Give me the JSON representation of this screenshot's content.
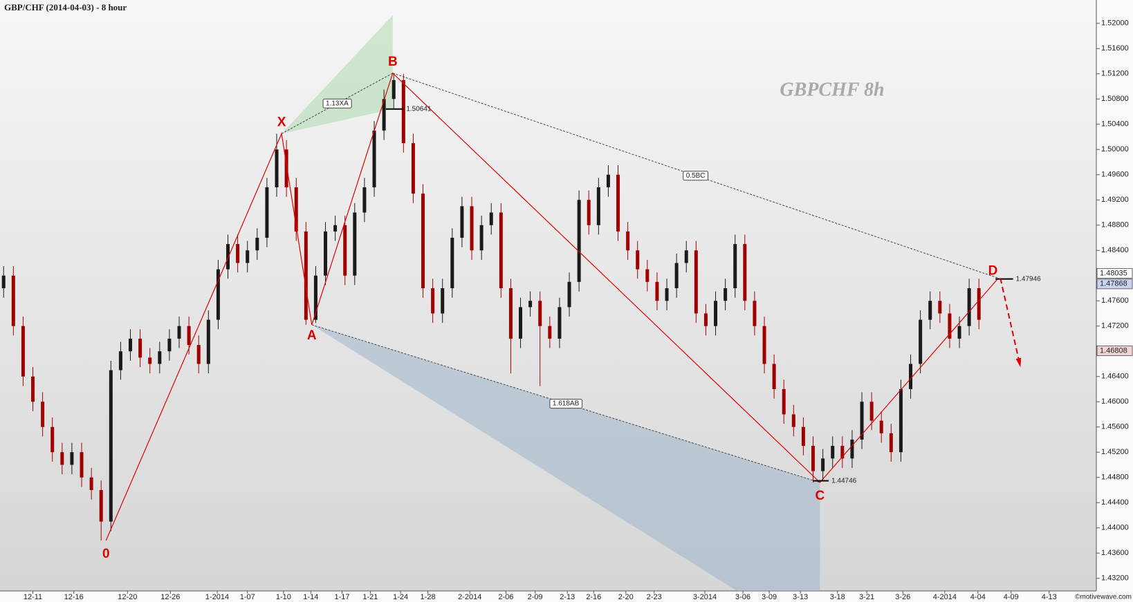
{
  "chart_data": {
    "type": "candlestick",
    "title": "GBP/CHF (2014-04-03) - 8 hour",
    "watermark": "GBPCHF  8h",
    "credit": "©motivewave.com",
    "up_color": "#1a1a1a",
    "down_color": "#a00000",
    "xlim": [
      -0.37,
      112.04
    ],
    "ylim": [
      1.43,
      1.5237
    ],
    "xticks": [
      {
        "value": 3,
        "label": "12-11"
      },
      {
        "value": 7.2,
        "label": "12-16"
      },
      {
        "value": 12.7,
        "label": "12-20"
      },
      {
        "value": 17.1,
        "label": "12-26"
      },
      {
        "value": 21.9,
        "label": "1-2014"
      },
      {
        "value": 25,
        "label": "1-07"
      },
      {
        "value": 28.7,
        "label": "1-10"
      },
      {
        "value": 31.5,
        "label": "1-14"
      },
      {
        "value": 34.7,
        "label": "1-17"
      },
      {
        "value": 37.6,
        "label": "1-21"
      },
      {
        "value": 40.7,
        "label": "1-24"
      },
      {
        "value": 43.5,
        "label": "1-28"
      },
      {
        "value": 47.8,
        "label": "2-2014"
      },
      {
        "value": 51.5,
        "label": "2-06"
      },
      {
        "value": 54.5,
        "label": "2-09"
      },
      {
        "value": 57.8,
        "label": "2-13"
      },
      {
        "value": 60.5,
        "label": "2-16"
      },
      {
        "value": 63.8,
        "label": "2-20"
      },
      {
        "value": 66.7,
        "label": "2-23"
      },
      {
        "value": 71.9,
        "label": "3-2014"
      },
      {
        "value": 75.8,
        "label": "3-06"
      },
      {
        "value": 78.5,
        "label": "3-09"
      },
      {
        "value": 81.7,
        "label": "3-13"
      },
      {
        "value": 85.5,
        "label": "3-18"
      },
      {
        "value": 88.5,
        "label": "3-21"
      },
      {
        "value": 92.2,
        "label": "3-26"
      },
      {
        "value": 96.5,
        "label": "4-2014"
      },
      {
        "value": 99.9,
        "label": "4-04"
      },
      {
        "value": 103.3,
        "label": "4-09"
      },
      {
        "value": 107.2,
        "label": "4-13"
      }
    ],
    "yticks": [
      {
        "value": 1.432,
        "label": "1.43200"
      },
      {
        "value": 1.436,
        "label": "1.43600"
      },
      {
        "value": 1.44,
        "label": "1.44000"
      },
      {
        "value": 1.444,
        "label": "1.44400"
      },
      {
        "value": 1.448,
        "label": "1.44800"
      },
      {
        "value": 1.452,
        "label": "1.45200"
      },
      {
        "value": 1.456,
        "label": "1.45600"
      },
      {
        "value": 1.46,
        "label": "1.46000"
      },
      {
        "value": 1.464,
        "label": "1.46400"
      },
      {
        "value": 1.468,
        "label": "1.46800"
      },
      {
        "value": 1.472,
        "label": "1.47200"
      },
      {
        "value": 1.476,
        "label": "1.47600"
      },
      {
        "value": 1.48,
        "label": "1.48000"
      },
      {
        "value": 1.484,
        "label": "1.48400"
      },
      {
        "value": 1.488,
        "label": "1.48800"
      },
      {
        "value": 1.492,
        "label": "1.49200"
      },
      {
        "value": 1.496,
        "label": "1.49600"
      },
      {
        "value": 1.5,
        "label": "1.50000"
      },
      {
        "value": 1.504,
        "label": "1.50400"
      },
      {
        "value": 1.508,
        "label": "1.50800"
      },
      {
        "value": 1.512,
        "label": "1.51200"
      },
      {
        "value": 1.516,
        "label": "1.51600"
      },
      {
        "value": 1.52,
        "label": "1.52000"
      }
    ],
    "x": [
      0,
      1,
      2,
      3,
      4,
      5,
      6,
      7,
      8,
      9,
      10,
      11,
      12,
      13,
      14,
      15,
      16,
      17,
      18,
      19,
      20,
      21,
      22,
      23,
      24,
      25,
      26,
      27,
      28,
      29,
      30,
      31,
      32,
      33,
      34,
      35,
      36,
      37,
      38,
      39,
      40,
      41,
      42,
      43,
      44,
      45,
      46,
      47,
      48,
      49,
      50,
      51,
      52,
      53,
      54,
      55,
      56,
      57,
      58,
      59,
      60,
      61,
      62,
      63,
      64,
      65,
      66,
      67,
      68,
      69,
      70,
      71,
      72,
      73,
      74,
      75,
      76,
      77,
      78,
      79,
      80,
      81,
      82,
      83,
      84,
      85,
      86,
      87,
      88,
      89,
      90,
      91,
      92,
      93,
      94,
      95,
      96,
      97,
      98,
      99,
      100
    ],
    "open": [
      1.478,
      1.48,
      1.472,
      1.464,
      1.46,
      1.456,
      1.452,
      1.45,
      1.452,
      1.448,
      1.446,
      1.441,
      1.465,
      1.468,
      1.47,
      1.467,
      1.466,
      1.468,
      1.47,
      1.472,
      1.469,
      1.466,
      1.473,
      1.481,
      1.485,
      1.482,
      1.484,
      1.486,
      1.494,
      1.5,
      1.494,
      1.487,
      1.473,
      1.48,
      1.487,
      1.488,
      1.48,
      1.49,
      1.494,
      1.503,
      1.508,
      1.511,
      1.501,
      1.493,
      1.478,
      1.474,
      1.478,
      1.486,
      1.491,
      1.484,
      1.488,
      1.49,
      1.478,
      1.47,
      1.475,
      1.476,
      1.472,
      1.47,
      1.475,
      1.479,
      1.492,
      1.488,
      1.494,
      1.496,
      1.487,
      1.484,
      1.481,
      1.479,
      1.476,
      1.478,
      1.482,
      1.484,
      1.474,
      1.472,
      1.476,
      1.478,
      1.485,
      1.476,
      1.472,
      1.466,
      1.462,
      1.458,
      1.456,
      1.453,
      1.449,
      1.451,
      1.453,
      1.451,
      1.454,
      1.46,
      1.457,
      1.455,
      1.452,
      1.462,
      1.466,
      1.473,
      1.476,
      1.474,
      1.47,
      1.472,
      1.478
    ],
    "high": [
      1.4815,
      1.4815,
      1.4735,
      1.4655,
      1.4615,
      1.4575,
      1.4535,
      1.4535,
      1.4535,
      1.4495,
      1.4475,
      1.4665,
      1.4695,
      1.4715,
      1.4715,
      1.4685,
      1.4695,
      1.4715,
      1.4735,
      1.4735,
      1.4705,
      1.4745,
      1.4825,
      1.4865,
      1.4865,
      1.4855,
      1.4875,
      1.4955,
      1.5025,
      1.5015,
      1.4955,
      1.4885,
      1.4815,
      1.4885,
      1.4895,
      1.4895,
      1.4915,
      1.4955,
      1.5045,
      1.5095,
      1.5121,
      1.512,
      1.5025,
      1.4945,
      1.4795,
      1.4795,
      1.4875,
      1.4925,
      1.4925,
      1.4895,
      1.4915,
      1.4915,
      1.4795,
      1.4765,
      1.4775,
      1.4775,
      1.4735,
      1.4765,
      1.4805,
      1.4935,
      1.4935,
      1.4955,
      1.4975,
      1.4975,
      1.4885,
      1.4855,
      1.4825,
      1.4805,
      1.4795,
      1.4835,
      1.4855,
      1.4855,
      1.4755,
      1.4775,
      1.4795,
      1.4865,
      1.4865,
      1.4775,
      1.4735,
      1.4675,
      1.4635,
      1.4595,
      1.4575,
      1.4545,
      1.4525,
      1.4545,
      1.4545,
      1.4555,
      1.4615,
      1.4615,
      1.4585,
      1.4565,
      1.4635,
      1.4675,
      1.4745,
      1.4775,
      1.4775,
      1.4755,
      1.4735,
      1.4795,
      1.4795
    ],
    "low": [
      1.4765,
      1.4705,
      1.4625,
      1.4585,
      1.4545,
      1.4505,
      1.4485,
      1.4485,
      1.4465,
      1.4445,
      1.438,
      1.4395,
      1.4635,
      1.4665,
      1.4655,
      1.4645,
      1.4645,
      1.4665,
      1.4685,
      1.4675,
      1.4645,
      1.4645,
      1.4715,
      1.4795,
      1.4805,
      1.4805,
      1.4825,
      1.4845,
      1.4925,
      1.4925,
      1.4855,
      1.4722,
      1.4725,
      1.4785,
      1.4855,
      1.4785,
      1.4785,
      1.4885,
      1.4925,
      1.5015,
      1.5065,
      1.4995,
      1.4915,
      1.4765,
      1.4725,
      1.4725,
      1.4765,
      1.4845,
      1.4825,
      1.4825,
      1.4865,
      1.4765,
      1.4645,
      1.4685,
      1.4735,
      1.4625,
      1.4685,
      1.4685,
      1.4735,
      1.4775,
      1.4865,
      1.4865,
      1.4925,
      1.4855,
      1.4825,
      1.4795,
      1.4775,
      1.4745,
      1.4745,
      1.4765,
      1.4805,
      1.4725,
      1.4705,
      1.4705,
      1.4745,
      1.4765,
      1.4745,
      1.4705,
      1.4645,
      1.4605,
      1.4565,
      1.4545,
      1.4515,
      1.4472,
      1.4475,
      1.4495,
      1.4495,
      1.4495,
      1.4525,
      1.4555,
      1.4535,
      1.4505,
      1.4505,
      1.4605,
      1.4645,
      1.4715,
      1.4725,
      1.4685,
      1.4685,
      1.4705,
      1.4715
    ],
    "close": [
      1.48,
      1.472,
      1.464,
      1.46,
      1.456,
      1.452,
      1.45,
      1.452,
      1.448,
      1.446,
      1.441,
      1.465,
      1.468,
      1.47,
      1.467,
      1.466,
      1.468,
      1.47,
      1.472,
      1.469,
      1.466,
      1.473,
      1.481,
      1.485,
      1.482,
      1.484,
      1.486,
      1.494,
      1.5,
      1.494,
      1.487,
      1.473,
      1.48,
      1.487,
      1.488,
      1.48,
      1.49,
      1.494,
      1.503,
      1.508,
      1.511,
      1.501,
      1.493,
      1.478,
      1.474,
      1.478,
      1.486,
      1.491,
      1.484,
      1.488,
      1.49,
      1.478,
      1.47,
      1.475,
      1.476,
      1.472,
      1.47,
      1.475,
      1.479,
      1.492,
      1.488,
      1.494,
      1.496,
      1.487,
      1.484,
      1.481,
      1.479,
      1.476,
      1.478,
      1.482,
      1.484,
      1.474,
      1.472,
      1.476,
      1.478,
      1.485,
      1.476,
      1.472,
      1.466,
      1.462,
      1.458,
      1.456,
      1.453,
      1.449,
      1.451,
      1.453,
      1.451,
      1.454,
      1.46,
      1.457,
      1.455,
      1.452,
      1.462,
      1.466,
      1.473,
      1.476,
      1.474,
      1.47,
      1.472,
      1.478,
      1.473
    ],
    "pattern": {
      "color": "#e00000",
      "points": [
        {
          "label": "0",
          "x": 10.5,
          "y": 1.438
        },
        {
          "label": "X",
          "x": 28.5,
          "y": 1.5025
        },
        {
          "label": "A",
          "x": 31.6,
          "y": 1.4722
        },
        {
          "label": "B",
          "x": 39.9,
          "y": 1.5121
        },
        {
          "label": "C",
          "x": 83.7,
          "y": 1.4472
        },
        {
          "label": "D",
          "x": 102,
          "y": 1.4796
        }
      ]
    },
    "ratios": [
      {
        "label": "1.13XA",
        "from": 1,
        "to": 3
      },
      {
        "label": "0.5BC",
        "from": 3,
        "to": 5
      },
      {
        "label": "1.618AB",
        "from": 2,
        "to": 4
      }
    ],
    "price_marks": [
      {
        "value": 1.50641,
        "label": "1.50641",
        "x": [
          39.2,
          41
        ]
      },
      {
        "value": 1.44746,
        "label": "1.44746",
        "x": [
          83,
          84.6
        ]
      },
      {
        "value": 1.47946,
        "label": "1.47946",
        "x": [
          101.7,
          103.5
        ]
      }
    ],
    "projection": {
      "x": [
        102.2,
        104.2
      ],
      "y": [
        1.4796,
        1.4659
      ]
    },
    "badges": [
      {
        "value": 1.48035,
        "label": "1.48035",
        "color": "#ffffff"
      },
      {
        "value": 1.47868,
        "label": "1.47868",
        "color": "#c8d4f0"
      },
      {
        "value": 1.46808,
        "label": "1.46808",
        "color": "#f3d4d4"
      }
    ]
  }
}
